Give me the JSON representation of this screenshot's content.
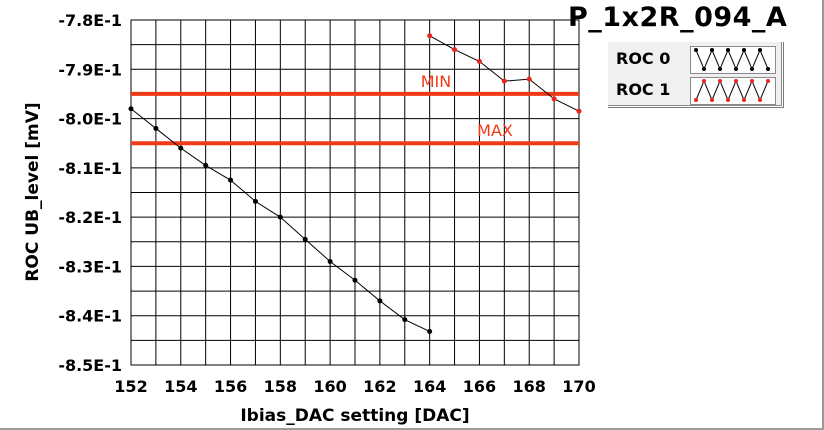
{
  "chart_data": {
    "type": "line",
    "title": "P_1x2R_094_A",
    "xlabel": "Ibias_DAC setting [DAC]",
    "ylabel": "ROC UB_level [mV]",
    "xlim": [
      152,
      170
    ],
    "ylim": [
      -0.85,
      -0.78
    ],
    "x_ticks": [
      "152",
      "154",
      "156",
      "158",
      "160",
      "162",
      "164",
      "166",
      "168",
      "170"
    ],
    "y_ticks": [
      "-7.8E-1",
      "-7.9E-1",
      "-8.0E-1",
      "-8.1E-1",
      "-8.2E-1",
      "-8.3E-1",
      "-8.4E-1",
      "-8.5E-1"
    ],
    "grid": true,
    "legend_position": "top-right",
    "series": [
      {
        "name": "ROC 0",
        "color": "#000000",
        "x": [
          152,
          153,
          154,
          155,
          156,
          157,
          158,
          159,
          160,
          161,
          162,
          163,
          164
        ],
        "y": [
          -0.798,
          -0.802,
          -0.806,
          -0.8095,
          -0.8125,
          -0.8168,
          -0.82,
          -0.8245,
          -0.829,
          -0.8328,
          -0.837,
          -0.8408,
          -0.8432
        ]
      },
      {
        "name": "ROC 1",
        "color": "#e8251f",
        "x": [
          164,
          165,
          166,
          167,
          168,
          169,
          170
        ],
        "y": [
          -0.7832,
          -0.786,
          -0.7884,
          -0.7924,
          -0.792,
          -0.796,
          -0.7985
        ]
      }
    ],
    "reference_lines": [
      {
        "label": "MIN",
        "y": -0.795,
        "color": "#f03a17"
      },
      {
        "label": "MAX",
        "y": -0.805,
        "color": "#f03a17"
      }
    ]
  }
}
